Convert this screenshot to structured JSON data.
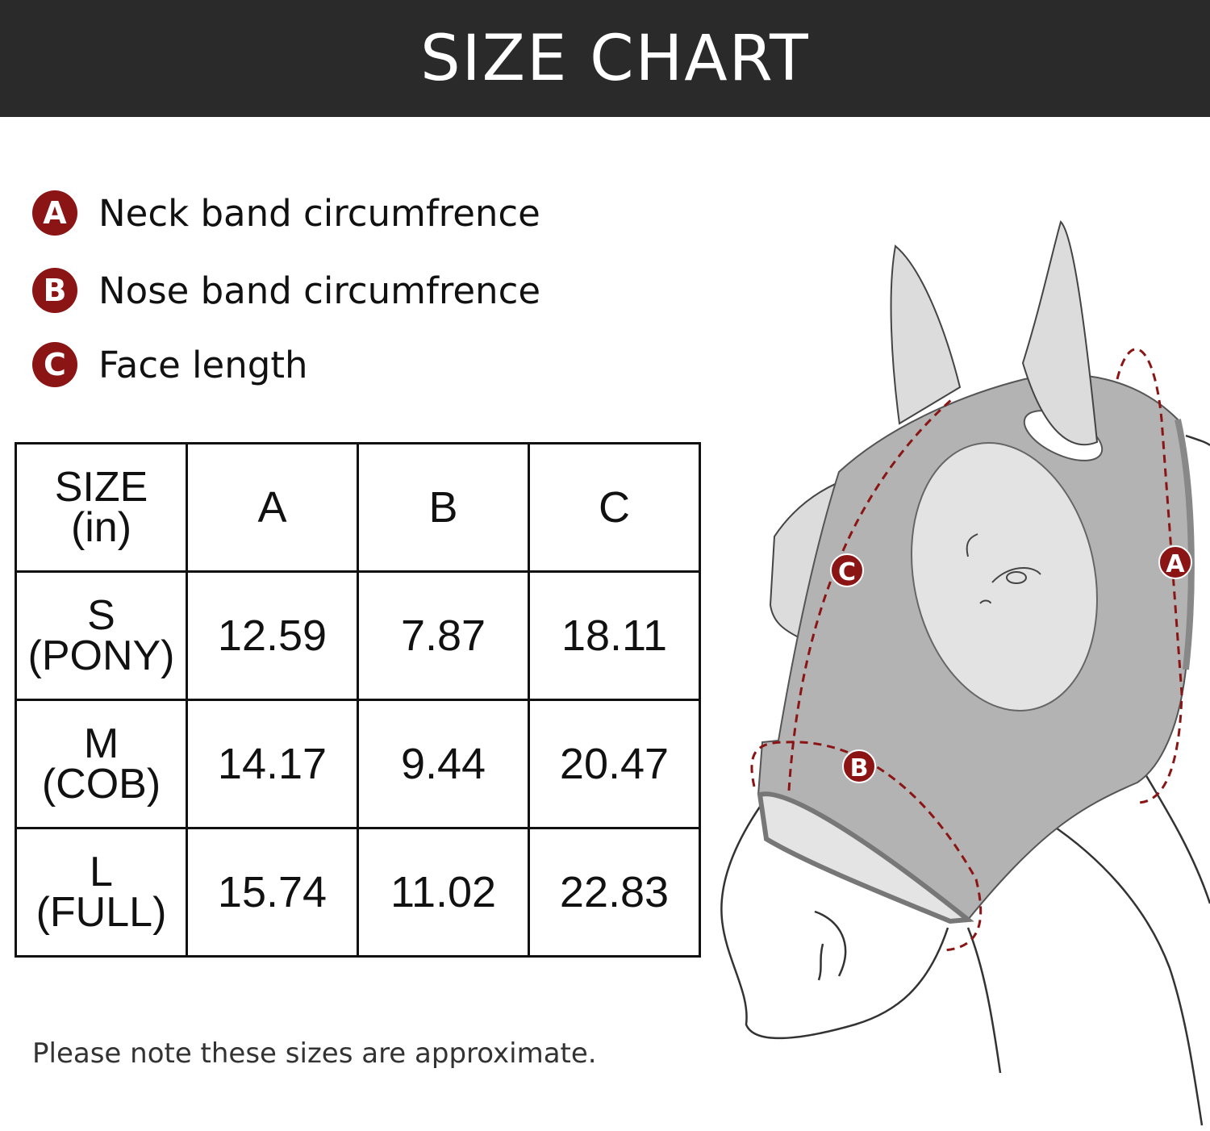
{
  "title": "SIZE CHART",
  "legend": [
    {
      "letter": "A",
      "label": "Neck band circumfrence"
    },
    {
      "letter": "B",
      "label": "Nose band circumfrence"
    },
    {
      "letter": "C",
      "label": "Face length"
    }
  ],
  "table": {
    "header": {
      "size_line1": "SIZE",
      "size_line2": "(in)",
      "cols": [
        "A",
        "B",
        "C"
      ]
    },
    "rows": [
      {
        "size": "S",
        "name": "(PONY)",
        "values": [
          "12.59",
          "7.87",
          "18.11"
        ]
      },
      {
        "size": "M",
        "name": "(COB)",
        "values": [
          "14.17",
          "9.44",
          "20.47"
        ]
      },
      {
        "size": "L",
        "name": "(FULL)",
        "values": [
          "15.74",
          "11.02",
          "22.83"
        ]
      }
    ]
  },
  "note": "Please note these sizes are approximate.",
  "illustration": {
    "markers": [
      "A",
      "B",
      "C"
    ],
    "colors": {
      "accent": "#8b1515",
      "mask": "#b3b3b3",
      "background": "#2a2a2a"
    }
  }
}
